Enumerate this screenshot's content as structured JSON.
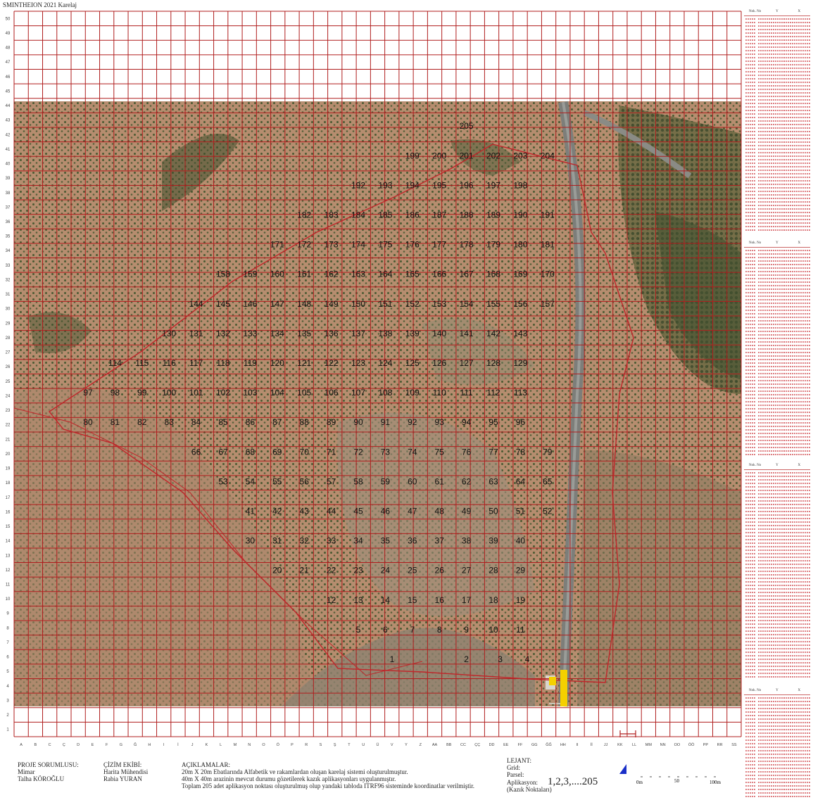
{
  "title": "SMINTHEION 2021 Karelaj",
  "colors": {
    "grid": "#b01e1e",
    "route": "#c0262a",
    "label": "#111111",
    "marker": "#f5d000",
    "north": "#1a2fc8"
  },
  "grid": {
    "columns": [
      "A",
      "B",
      "C",
      "Ç",
      "D",
      "E",
      "F",
      "G",
      "Ğ",
      "H",
      "I",
      "İ",
      "J",
      "K",
      "L",
      "M",
      "N",
      "O",
      "Ö",
      "P",
      "R",
      "S",
      "Ş",
      "T",
      "U",
      "Ü",
      "V",
      "Y",
      "Z",
      "AA",
      "BB",
      "CC",
      "ÇÇ",
      "DD",
      "EE",
      "FF",
      "GG",
      "ĞĞ",
      "HH",
      "II",
      "İİ",
      "JJ",
      "KK",
      "LL",
      "MM",
      "NN",
      "OO",
      "ÖÖ",
      "PP",
      "RR",
      "SS"
    ],
    "row_labels": [
      "50",
      "49",
      "48",
      "47",
      "46",
      "45",
      "44",
      "43",
      "42",
      "41",
      "40",
      "39",
      "38",
      "37",
      "36",
      "35",
      "34",
      "33",
      "32",
      "31",
      "30",
      "29",
      "28",
      "27",
      "26",
      "25",
      "24",
      "23",
      "22",
      "21",
      "20",
      "19",
      "18",
      "17",
      "16",
      "15",
      "14",
      "13",
      "12",
      "11",
      "10",
      "9",
      "8",
      "7",
      "6",
      "5",
      "4",
      "3",
      "2",
      "1"
    ]
  },
  "points": [
    {
      "n": "1",
      "c": 27,
      "r": 3
    },
    {
      "n": "2",
      "c": 32.5,
      "r": 3
    },
    {
      "n": "3",
      "c": 35,
      "r": 3
    },
    {
      "n": "4",
      "c": 37,
      "r": 3
    },
    {
      "n": "5",
      "c": 24.5,
      "r": 5
    },
    {
      "n": "6",
      "c": 26.5,
      "r": 5
    },
    {
      "n": "7",
      "c": 28.5,
      "r": 5
    },
    {
      "n": "8",
      "c": 30.5,
      "r": 5
    },
    {
      "n": "9",
      "c": 32.5,
      "r": 5
    },
    {
      "n": "10",
      "c": 34.5,
      "r": 5
    },
    {
      "n": "11",
      "c": 36.5,
      "r": 5
    },
    {
      "n": "12",
      "c": 22.5,
      "r": 7
    },
    {
      "n": "13",
      "c": 24.5,
      "r": 7
    },
    {
      "n": "14",
      "c": 26.5,
      "r": 7
    },
    {
      "n": "15",
      "c": 28.5,
      "r": 7
    },
    {
      "n": "16",
      "c": 30.5,
      "r": 7
    },
    {
      "n": "17",
      "c": 32.5,
      "r": 7
    },
    {
      "n": "18",
      "c": 34.5,
      "r": 7
    },
    {
      "n": "19",
      "c": 36.5,
      "r": 7
    },
    {
      "n": "20",
      "c": 18.5,
      "r": 9
    },
    {
      "n": "21",
      "c": 20.5,
      "r": 9
    },
    {
      "n": "22",
      "c": 22.5,
      "r": 9
    },
    {
      "n": "23",
      "c": 24.5,
      "r": 9
    },
    {
      "n": "24",
      "c": 26.5,
      "r": 9
    },
    {
      "n": "25",
      "c": 28.5,
      "r": 9
    },
    {
      "n": "26",
      "c": 30.5,
      "r": 9
    },
    {
      "n": "27",
      "c": 32.5,
      "r": 9
    },
    {
      "n": "28",
      "c": 34.5,
      "r": 9
    },
    {
      "n": "29",
      "c": 36.5,
      "r": 9
    },
    {
      "n": "30",
      "c": 16.5,
      "r": 11
    },
    {
      "n": "31",
      "c": 18.5,
      "r": 11
    },
    {
      "n": "32",
      "c": 20.5,
      "r": 11
    },
    {
      "n": "33",
      "c": 22.5,
      "r": 11
    },
    {
      "n": "34",
      "c": 24.5,
      "r": 11
    },
    {
      "n": "35",
      "c": 26.5,
      "r": 11
    },
    {
      "n": "36",
      "c": 28.5,
      "r": 11
    },
    {
      "n": "37",
      "c": 30.5,
      "r": 11
    },
    {
      "n": "38",
      "c": 32.5,
      "r": 11
    },
    {
      "n": "39",
      "c": 34.5,
      "r": 11
    },
    {
      "n": "40",
      "c": 36.5,
      "r": 11
    },
    {
      "n": "41",
      "c": 16.5,
      "r": 13
    },
    {
      "n": "42",
      "c": 18.5,
      "r": 13
    },
    {
      "n": "43",
      "c": 20.5,
      "r": 13
    },
    {
      "n": "44",
      "c": 22.5,
      "r": 13
    },
    {
      "n": "45",
      "c": 24.5,
      "r": 13
    },
    {
      "n": "46",
      "c": 26.5,
      "r": 13
    },
    {
      "n": "47",
      "c": 28.5,
      "r": 13
    },
    {
      "n": "48",
      "c": 30.5,
      "r": 13
    },
    {
      "n": "49",
      "c": 32.5,
      "r": 13
    },
    {
      "n": "50",
      "c": 34.5,
      "r": 13
    },
    {
      "n": "51",
      "c": 36.5,
      "r": 13
    },
    {
      "n": "52",
      "c": 38.5,
      "r": 13
    },
    {
      "n": "53",
      "c": 14.5,
      "r": 15
    },
    {
      "n": "54",
      "c": 16.5,
      "r": 15
    },
    {
      "n": "55",
      "c": 18.5,
      "r": 15
    },
    {
      "n": "56",
      "c": 20.5,
      "r": 15
    },
    {
      "n": "57",
      "c": 22.5,
      "r": 15
    },
    {
      "n": "58",
      "c": 24.5,
      "r": 15
    },
    {
      "n": "59",
      "c": 26.5,
      "r": 15
    },
    {
      "n": "60",
      "c": 28.5,
      "r": 15
    },
    {
      "n": "61",
      "c": 30.5,
      "r": 15
    },
    {
      "n": "62",
      "c": 32.5,
      "r": 15
    },
    {
      "n": "63",
      "c": 34.5,
      "r": 15
    },
    {
      "n": "64",
      "c": 36.5,
      "r": 15
    },
    {
      "n": "65",
      "c": 38.5,
      "r": 15
    },
    {
      "n": "66",
      "c": 12.5,
      "r": 17
    },
    {
      "n": "67",
      "c": 14.5,
      "r": 17
    },
    {
      "n": "68",
      "c": 16.5,
      "r": 17
    },
    {
      "n": "69",
      "c": 18.5,
      "r": 17
    },
    {
      "n": "70",
      "c": 20.5,
      "r": 17
    },
    {
      "n": "71",
      "c": 22.5,
      "r": 17
    },
    {
      "n": "72",
      "c": 24.5,
      "r": 17
    },
    {
      "n": "73",
      "c": 26.5,
      "r": 17
    },
    {
      "n": "74",
      "c": 28.5,
      "r": 17
    },
    {
      "n": "75",
      "c": 30.5,
      "r": 17
    },
    {
      "n": "76",
      "c": 32.5,
      "r": 17
    },
    {
      "n": "77",
      "c": 34.5,
      "r": 17
    },
    {
      "n": "78",
      "c": 36.5,
      "r": 17
    },
    {
      "n": "79",
      "c": 38.5,
      "r": 17
    },
    {
      "n": "80",
      "c": 4.5,
      "r": 19
    },
    {
      "n": "81",
      "c": 6.5,
      "r": 19
    },
    {
      "n": "82",
      "c": 8.5,
      "r": 19
    },
    {
      "n": "83",
      "c": 10.5,
      "r": 19
    },
    {
      "n": "84",
      "c": 12.5,
      "r": 19
    },
    {
      "n": "85",
      "c": 14.5,
      "r": 19
    },
    {
      "n": "86",
      "c": 16.5,
      "r": 19
    },
    {
      "n": "87",
      "c": 18.5,
      "r": 19
    },
    {
      "n": "88",
      "c": 20.5,
      "r": 19
    },
    {
      "n": "89",
      "c": 22.5,
      "r": 19
    },
    {
      "n": "90",
      "c": 24.5,
      "r": 19
    },
    {
      "n": "91",
      "c": 26.5,
      "r": 19
    },
    {
      "n": "92",
      "c": 28.5,
      "r": 19
    },
    {
      "n": "93",
      "c": 30.5,
      "r": 19
    },
    {
      "n": "94",
      "c": 32.5,
      "r": 19
    },
    {
      "n": "95",
      "c": 34.5,
      "r": 19
    },
    {
      "n": "96",
      "c": 36.5,
      "r": 19
    },
    {
      "n": "97",
      "c": 4.5,
      "r": 21
    },
    {
      "n": "98",
      "c": 6.5,
      "r": 21
    },
    {
      "n": "99",
      "c": 8.5,
      "r": 21
    },
    {
      "n": "100",
      "c": 10.5,
      "r": 21
    },
    {
      "n": "101",
      "c": 12.5,
      "r": 21
    },
    {
      "n": "102",
      "c": 14.5,
      "r": 21
    },
    {
      "n": "103",
      "c": 16.5,
      "r": 21
    },
    {
      "n": "104",
      "c": 18.5,
      "r": 21
    },
    {
      "n": "105",
      "c": 20.5,
      "r": 21
    },
    {
      "n": "106",
      "c": 22.5,
      "r": 21
    },
    {
      "n": "107",
      "c": 24.5,
      "r": 21
    },
    {
      "n": "108",
      "c": 26.5,
      "r": 21
    },
    {
      "n": "109",
      "c": 28.5,
      "r": 21
    },
    {
      "n": "110",
      "c": 30.5,
      "r": 21
    },
    {
      "n": "111",
      "c": 32.5,
      "r": 21
    },
    {
      "n": "112",
      "c": 34.5,
      "r": 21
    },
    {
      "n": "113",
      "c": 36.5,
      "r": 21
    },
    {
      "n": "114",
      "c": 6.5,
      "r": 23
    },
    {
      "n": "115",
      "c": 8.5,
      "r": 23
    },
    {
      "n": "116",
      "c": 10.5,
      "r": 23
    },
    {
      "n": "117",
      "c": 12.5,
      "r": 23
    },
    {
      "n": "118",
      "c": 14.5,
      "r": 23
    },
    {
      "n": "119",
      "c": 16.5,
      "r": 23
    },
    {
      "n": "120",
      "c": 18.5,
      "r": 23
    },
    {
      "n": "121",
      "c": 20.5,
      "r": 23
    },
    {
      "n": "122",
      "c": 22.5,
      "r": 23
    },
    {
      "n": "123",
      "c": 24.5,
      "r": 23
    },
    {
      "n": "124",
      "c": 26.5,
      "r": 23
    },
    {
      "n": "125",
      "c": 28.5,
      "r": 23
    },
    {
      "n": "126",
      "c": 30.5,
      "r": 23
    },
    {
      "n": "127",
      "c": 32.5,
      "r": 23
    },
    {
      "n": "128",
      "c": 34.5,
      "r": 23
    },
    {
      "n": "129",
      "c": 36.5,
      "r": 23
    },
    {
      "n": "130",
      "c": 10.5,
      "r": 25
    },
    {
      "n": "131",
      "c": 12.5,
      "r": 25
    },
    {
      "n": "132",
      "c": 14.5,
      "r": 25
    },
    {
      "n": "133",
      "c": 16.5,
      "r": 25
    },
    {
      "n": "134",
      "c": 18.5,
      "r": 25
    },
    {
      "n": "135",
      "c": 20.5,
      "r": 25
    },
    {
      "n": "136",
      "c": 22.5,
      "r": 25
    },
    {
      "n": "137",
      "c": 24.5,
      "r": 25
    },
    {
      "n": "138",
      "c": 26.5,
      "r": 25
    },
    {
      "n": "139",
      "c": 28.5,
      "r": 25
    },
    {
      "n": "140",
      "c": 30.5,
      "r": 25
    },
    {
      "n": "141",
      "c": 32.5,
      "r": 25
    },
    {
      "n": "142",
      "c": 34.5,
      "r": 25
    },
    {
      "n": "143",
      "c": 36.5,
      "r": 25
    },
    {
      "n": "144",
      "c": 12.5,
      "r": 27
    },
    {
      "n": "145",
      "c": 14.5,
      "r": 27
    },
    {
      "n": "146",
      "c": 16.5,
      "r": 27
    },
    {
      "n": "147",
      "c": 18.5,
      "r": 27
    },
    {
      "n": "148",
      "c": 20.5,
      "r": 27
    },
    {
      "n": "149",
      "c": 22.5,
      "r": 27
    },
    {
      "n": "150",
      "c": 24.5,
      "r": 27
    },
    {
      "n": "151",
      "c": 26.5,
      "r": 27
    },
    {
      "n": "152",
      "c": 28.5,
      "r": 27
    },
    {
      "n": "153",
      "c": 30.5,
      "r": 27
    },
    {
      "n": "154",
      "c": 32.5,
      "r": 27
    },
    {
      "n": "155",
      "c": 34.5,
      "r": 27
    },
    {
      "n": "156",
      "c": 36.5,
      "r": 27
    },
    {
      "n": "157",
      "c": 38.5,
      "r": 27
    },
    {
      "n": "158",
      "c": 14.5,
      "r": 29
    },
    {
      "n": "159",
      "c": 16.5,
      "r": 29
    },
    {
      "n": "160",
      "c": 18.5,
      "r": 29
    },
    {
      "n": "161",
      "c": 20.5,
      "r": 29
    },
    {
      "n": "162",
      "c": 22.5,
      "r": 29
    },
    {
      "n": "163",
      "c": 24.5,
      "r": 29
    },
    {
      "n": "164",
      "c": 26.5,
      "r": 29
    },
    {
      "n": "165",
      "c": 28.5,
      "r": 29
    },
    {
      "n": "166",
      "c": 30.5,
      "r": 29
    },
    {
      "n": "167",
      "c": 32.5,
      "r": 29
    },
    {
      "n": "168",
      "c": 34.5,
      "r": 29
    },
    {
      "n": "169",
      "c": 36.5,
      "r": 29
    },
    {
      "n": "170",
      "c": 38.5,
      "r": 29
    },
    {
      "n": "171",
      "c": 18.5,
      "r": 31
    },
    {
      "n": "172",
      "c": 20.5,
      "r": 31
    },
    {
      "n": "173",
      "c": 22.5,
      "r": 31
    },
    {
      "n": "174",
      "c": 24.5,
      "r": 31
    },
    {
      "n": "175",
      "c": 26.5,
      "r": 31
    },
    {
      "n": "176",
      "c": 28.5,
      "r": 31
    },
    {
      "n": "177",
      "c": 30.5,
      "r": 31
    },
    {
      "n": "178",
      "c": 32.5,
      "r": 31
    },
    {
      "n": "179",
      "c": 34.5,
      "r": 31
    },
    {
      "n": "180",
      "c": 36.5,
      "r": 31
    },
    {
      "n": "181",
      "c": 38.5,
      "r": 31
    },
    {
      "n": "182",
      "c": 20.5,
      "r": 33
    },
    {
      "n": "183",
      "c": 22.5,
      "r": 33
    },
    {
      "n": "184",
      "c": 24.5,
      "r": 33
    },
    {
      "n": "185",
      "c": 26.5,
      "r": 33
    },
    {
      "n": "186",
      "c": 28.5,
      "r": 33
    },
    {
      "n": "187",
      "c": 30.5,
      "r": 33
    },
    {
      "n": "188",
      "c": 32.5,
      "r": 33
    },
    {
      "n": "189",
      "c": 34.5,
      "r": 33
    },
    {
      "n": "190",
      "c": 36.5,
      "r": 33
    },
    {
      "n": "191",
      "c": 38.5,
      "r": 33
    },
    {
      "n": "192",
      "c": 24.5,
      "r": 35
    },
    {
      "n": "193",
      "c": 26.5,
      "r": 35
    },
    {
      "n": "194",
      "c": 28.5,
      "r": 35
    },
    {
      "n": "195",
      "c": 30.5,
      "r": 35
    },
    {
      "n": "196",
      "c": 32.5,
      "r": 35
    },
    {
      "n": "197",
      "c": 34.5,
      "r": 35
    },
    {
      "n": "198",
      "c": 36.5,
      "r": 35
    },
    {
      "n": "199",
      "c": 28.5,
      "r": 37
    },
    {
      "n": "200",
      "c": 30.5,
      "r": 37
    },
    {
      "n": "201",
      "c": 32.5,
      "r": 37
    },
    {
      "n": "202",
      "c": 34.5,
      "r": 37
    },
    {
      "n": "203",
      "c": 36.5,
      "r": 37
    },
    {
      "n": "204",
      "c": 38.5,
      "r": 37
    },
    {
      "n": "205",
      "c": 32.5,
      "r": 39
    }
  ],
  "footer": {
    "proje_title": "PROJE SORUMLUSU:",
    "proje_role": "Mimar",
    "proje_name": "Talha KÖROĞLU",
    "cizim_title": "ÇİZİM EKİBİ:",
    "cizim_role": "Harita Mühendisi",
    "cizim_name": "Rabia YURAN",
    "aciklama_title": "AÇIKLAMALAR:",
    "aciklama_1": "20m X 20m Ebatlarında Alfabetik ve rakamlardan oluşan karelaj sistemi oluşturulmuştur.",
    "aciklama_2": "40m X 40m arazinin mevcut durumu gözetilerek kazık aplikasyonları uygulanmıştır.",
    "aciklama_3": "Toplam 205 adet aplikasyon noktası oluşturulmuş olup yandaki tabloda ITRF96 sisteminde koordinatlar verilmiştir.",
    "legend_title": "LEJANT:",
    "legend_grid": "Grid:",
    "legend_parsel": "Parsel:",
    "legend_app": "Aplikasyon:",
    "legend_app_value": "1,2,3,....205",
    "legend_app_note": "(Kazık Noktaları)",
    "scale_0": "0m",
    "scale_50": "50",
    "scale_100": "100m"
  },
  "coord_table": {
    "headers": [
      "Nok. No",
      "Y",
      "X"
    ]
  }
}
